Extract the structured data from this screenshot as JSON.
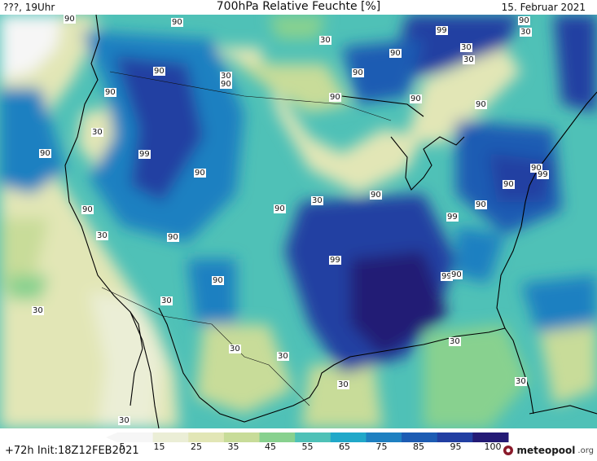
{
  "header": {
    "left": "???, 19Uhr",
    "title": "700hPa Relative Feuchte [%]",
    "date": "15. Februar 2021"
  },
  "footer": {
    "lead_time": "+72h",
    "init": "Init:18Z12FEB2021",
    "brand_name": "meteopool",
    "brand_tld": ".org"
  },
  "legend": {
    "ticks": [
      "5",
      "15",
      "25",
      "35",
      "45",
      "55",
      "65",
      "75",
      "85",
      "95",
      "100"
    ],
    "colors": [
      "#f6f6f6",
      "#ebeed6",
      "#e2e6b6",
      "#c8dc99",
      "#88d18f",
      "#4fc1b7",
      "#21a8c9",
      "#1f80c1",
      "#1d5cb3",
      "#223fa2",
      "#241a75"
    ]
  },
  "map_labels": [
    {
      "text": "90"
    },
    {
      "text": "90"
    },
    {
      "text": "90"
    },
    {
      "text": "30"
    },
    {
      "text": "99"
    },
    {
      "text": "30"
    },
    {
      "text": "90"
    },
    {
      "text": "90"
    },
    {
      "text": "90"
    },
    {
      "text": "30"
    },
    {
      "text": "90"
    },
    {
      "text": "90"
    },
    {
      "text": "90"
    },
    {
      "text": "30"
    },
    {
      "text": "30"
    },
    {
      "text": "90"
    },
    {
      "text": "90"
    },
    {
      "text": "30"
    },
    {
      "text": "90"
    },
    {
      "text": "99"
    },
    {
      "text": "90"
    },
    {
      "text": "90"
    },
    {
      "text": "90"
    },
    {
      "text": "99"
    },
    {
      "text": "90"
    },
    {
      "text": "30"
    },
    {
      "text": "90"
    },
    {
      "text": "90"
    },
    {
      "text": "90"
    },
    {
      "text": "99"
    },
    {
      "text": "30"
    },
    {
      "text": "90"
    },
    {
      "text": "99"
    },
    {
      "text": "99"
    },
    {
      "text": "30"
    },
    {
      "text": "90"
    },
    {
      "text": "30"
    },
    {
      "text": "90"
    },
    {
      "text": "30"
    },
    {
      "text": "30"
    },
    {
      "text": "30"
    },
    {
      "text": "30"
    },
    {
      "text": "30"
    },
    {
      "text": "30"
    }
  ]
}
